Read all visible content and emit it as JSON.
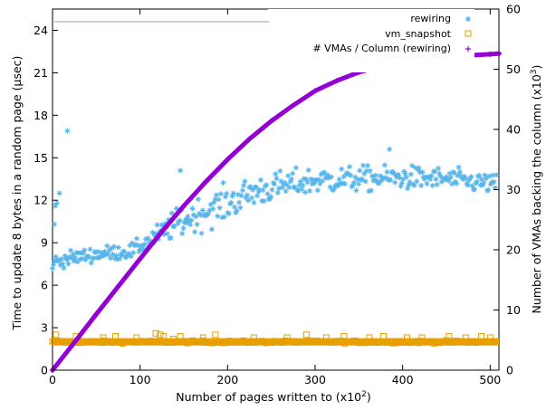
{
  "chart_data": {
    "type": "scatter",
    "xlabel": "Number of pages written to (x10",
    "xlabel_sup": "2",
    "xlabel_end": ")",
    "ylabel_left": "Time to update 8 bytes in a random page (µsec)",
    "ylabel_right": "Number of VMAs backing the column (x10",
    "ylabel_right_sup": "3",
    "ylabel_right_end": ")",
    "xlim": [
      0,
      510
    ],
    "ylim_left": [
      0,
      25.5
    ],
    "ylim_right": [
      0,
      60
    ],
    "x_ticks": [
      0,
      100,
      200,
      300,
      400,
      500
    ],
    "y_left_ticks": [
      0,
      3,
      6,
      9,
      12,
      15,
      18,
      21,
      24
    ],
    "y_right_ticks": [
      0,
      10,
      20,
      30,
      40,
      50,
      60
    ],
    "grid": false,
    "legend_position": "top-right",
    "series": [
      {
        "name": "rewiring",
        "axis": "left",
        "marker": "asterisk",
        "color": "#56b4e9",
        "trend": [
          [
            0,
            7.6
          ],
          [
            20,
            7.9
          ],
          [
            50,
            8.2
          ],
          [
            90,
            8.4
          ],
          [
            110,
            9.1
          ],
          [
            140,
            10.3
          ],
          [
            170,
            11.1
          ],
          [
            200,
            11.8
          ],
          [
            230,
            12.6
          ],
          [
            260,
            13.0
          ],
          [
            300,
            13.4
          ],
          [
            350,
            13.5
          ],
          [
            400,
            13.6
          ],
          [
            450,
            13.5
          ],
          [
            510,
            13.1
          ]
        ],
        "spread": [
          [
            0,
            0.45
          ],
          [
            100,
            0.5
          ],
          [
            150,
            1.0
          ],
          [
            200,
            1.1
          ],
          [
            260,
            0.9
          ],
          [
            350,
            0.8
          ],
          [
            450,
            0.7
          ],
          [
            510,
            0.6
          ]
        ],
        "outliers": [
          [
            2,
            10.3
          ],
          [
            3,
            11.6
          ],
          [
            5,
            11.8
          ],
          [
            8,
            12.5
          ],
          [
            17,
            16.9
          ],
          [
            146,
            14.1
          ],
          [
            385,
            15.6
          ]
        ]
      },
      {
        "name": "vm_snapshot",
        "axis": "left",
        "marker": "square",
        "color": "#e69f00",
        "trend": [
          [
            0,
            2.0
          ],
          [
            510,
            2.0
          ]
        ],
        "outliers": [
          [
            4,
            2.5
          ],
          [
            27,
            2.4
          ],
          [
            58,
            2.3
          ],
          [
            72,
            2.4
          ],
          [
            96,
            2.3
          ],
          [
            118,
            2.6
          ],
          [
            123,
            2.5
          ],
          [
            127,
            2.4
          ],
          [
            138,
            2.2
          ],
          [
            146,
            2.4
          ],
          [
            172,
            2.3
          ],
          [
            186,
            2.5
          ],
          [
            230,
            2.3
          ],
          [
            268,
            2.3
          ],
          [
            290,
            2.5
          ],
          [
            313,
            2.3
          ],
          [
            333,
            2.4
          ],
          [
            362,
            2.3
          ],
          [
            378,
            2.4
          ],
          [
            405,
            2.3
          ],
          [
            422,
            2.3
          ],
          [
            453,
            2.4
          ],
          [
            472,
            2.3
          ],
          [
            490,
            2.4
          ],
          [
            500,
            2.3
          ]
        ]
      },
      {
        "name": "# VMAs / Column (rewiring)",
        "axis": "right",
        "marker": "plus",
        "color": "#9400d3",
        "x": [
          0,
          25,
          50,
          75,
          100,
          125,
          150,
          175,
          200,
          225,
          250,
          275,
          300,
          325,
          350,
          375,
          400,
          425,
          450,
          475,
          500,
          510
        ],
        "y": [
          0,
          4.6,
          9.3,
          13.9,
          18.5,
          23.0,
          27.3,
          31.3,
          35.0,
          38.4,
          41.4,
          44.0,
          46.4,
          48.1,
          49.5,
          50.4,
          51.0,
          51.6,
          52.0,
          52.3,
          52.5,
          52.6
        ]
      }
    ]
  }
}
